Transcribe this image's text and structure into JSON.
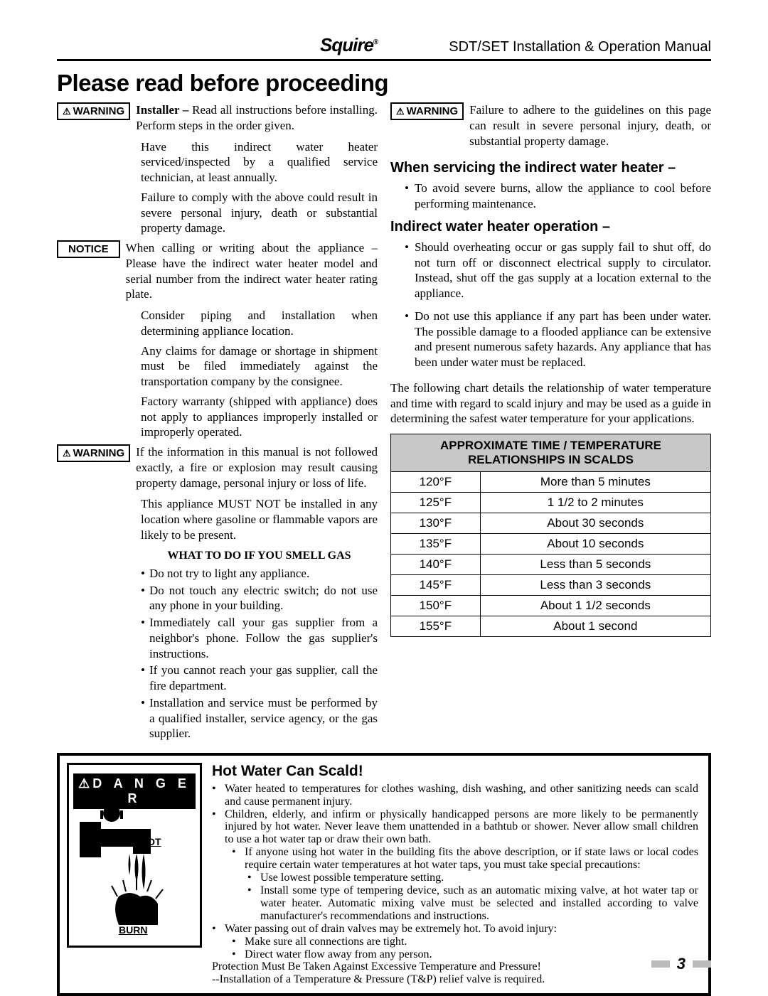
{
  "header": {
    "brand": "Squire",
    "manual": "SDT/SET Installation & Operation Manual"
  },
  "title": "Please read before proceeding",
  "labels": {
    "warning": "WARNING",
    "notice": "NOTICE",
    "danger": "D A N G E R"
  },
  "left": {
    "w1_a": "Installer – Read all instructions before installing.  Perform steps in the order given.",
    "w1_b": "Have this indirect water heater serviced/inspected by a qualified service technician, at least annually.",
    "w1_c": "Failure to comply with the above could result in severe personal injury, death or substantial property damage.",
    "n1": "When calling or writing about the appliance – Please have the indirect water heater model and serial number from the indirect water heater rating plate.",
    "n2": "Consider piping and installation when determining appliance location.",
    "n3": "Any claims for damage or shortage in shipment must be filed immediately against the transportation company by the consignee.",
    "n4": "Factory warranty (shipped with appliance) does not apply to appliances improperly installed or improperly operated.",
    "w2_a": "If the information in this manual is not followed exactly, a fire or explosion may result causing property damage, personal injury or loss of life.",
    "w2_b": "This appliance MUST NOT be installed in any location where gasoline or flammable vapors are likely to be present.",
    "gas_head": "WHAT TO DO IF YOU SMELL GAS",
    "gas1": "Do not try to light any appliance.",
    "gas2": "Do not touch any electric switch; do not use any phone in your building.",
    "gas3": "Immediately call your gas supplier from a neighbor's phone.  Follow the gas supplier's instructions.",
    "gas4": "If you cannot reach your gas supplier, call the fire department.",
    "gas5": "Installation and service must be performed by a qualified installer, service agency, or the gas supplier."
  },
  "right": {
    "w1": "Failure to adhere to the guidelines on this page can result in severe personal injury, death, or substantial property damage.",
    "h1": "When servicing the indirect water heater –",
    "b1": "To avoid severe burns, allow the appliance to cool before performing maintenance.",
    "h2": "Indirect water heater operation –",
    "b2": "Should overheating occur or gas supply fail to shut off, do not turn off or disconnect electrical supply to circulator.  Instead, shut off the gas supply at a location external to the appliance.",
    "b3": "Do not use this appliance if any part has been under water.  The possible damage to a flooded appliance can be extensive and present numerous safety hazards.  Any appliance that has been under water must be replaced.",
    "intro": "The following chart details the relationship of water temperature and time with regard to scald injury and may be used as a guide in determining the safest water temperature for your applications.",
    "table_title": "APPROXIMATE TIME / TEMPERATURE RELATIONSHIPS IN SCALDS",
    "rows": [
      {
        "t": "120°F",
        "d": "More than 5 minutes"
      },
      {
        "t": "125°F",
        "d": "1 1/2 to 2 minutes"
      },
      {
        "t": "130°F",
        "d": "About 30 seconds"
      },
      {
        "t": "135°F",
        "d": "About 10 seconds"
      },
      {
        "t": "140°F",
        "d": "Less than 5 seconds"
      },
      {
        "t": "145°F",
        "d": "Less than 3 seconds"
      },
      {
        "t": "150°F",
        "d": "About 1 1/2 seconds"
      },
      {
        "t": "155°F",
        "d": "About 1 second"
      }
    ]
  },
  "danger": {
    "title": "Hot Water Can Scald!",
    "hot": "HOT",
    "burn": "BURN",
    "d1": "Water heated to temperatures for clothes washing, dish washing, and other sanitizing needs can scald and cause permanent injury.",
    "d2": "Children, elderly, and infirm or physically handicapped persons are more likely to be permanently injured by hot water.  Never leave them unattended in a bathtub or shower.  Never allow small children to use a hot water tap or draw their own bath.",
    "d3": "If anyone using hot water in the building fits the above description, or if state laws or local codes require certain water temperatures at hot water taps, you must take special precautions:",
    "d3a": "Use lowest possible temperature setting.",
    "d3b": "Install some type of tempering device, such as an automatic mixing valve, at hot water tap or water heater.  Automatic mixing valve must be selected and installed according to valve manufacturer's recommendations and instructions.",
    "d4": "Water passing out of drain valves may be extremely hot.  To avoid injury:",
    "d4a": "Make sure all connections are tight.",
    "d4b": "Direct water flow away from any person.",
    "p1": "Protection Must Be Taken Against Excessive Temperature and Pressure!",
    "p2": "--Installation of a Temperature & Pressure (T&P) relief valve is required."
  },
  "page": "3"
}
